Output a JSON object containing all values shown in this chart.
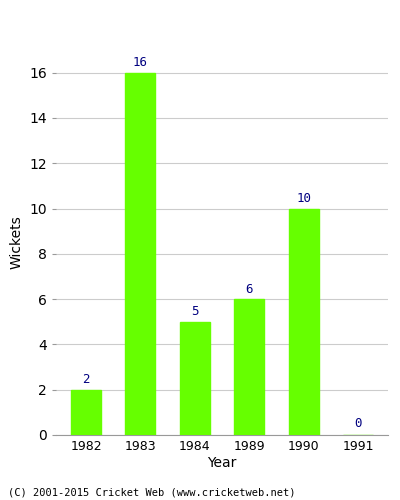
{
  "categories": [
    "1982",
    "1983",
    "1984",
    "1989",
    "1990",
    "1991"
  ],
  "values": [
    2,
    16,
    5,
    6,
    10,
    0
  ],
  "bar_color": "#66ff00",
  "label_color": "#000080",
  "ylabel": "Wickets",
  "xlabel": "Year",
  "ylim": [
    0,
    17
  ],
  "yticks": [
    0,
    2,
    4,
    6,
    8,
    10,
    12,
    14,
    16
  ],
  "background_color": "#ffffff",
  "footer": "(C) 2001-2015 Cricket Web (www.cricketweb.net)",
  "bar_width": 0.55
}
